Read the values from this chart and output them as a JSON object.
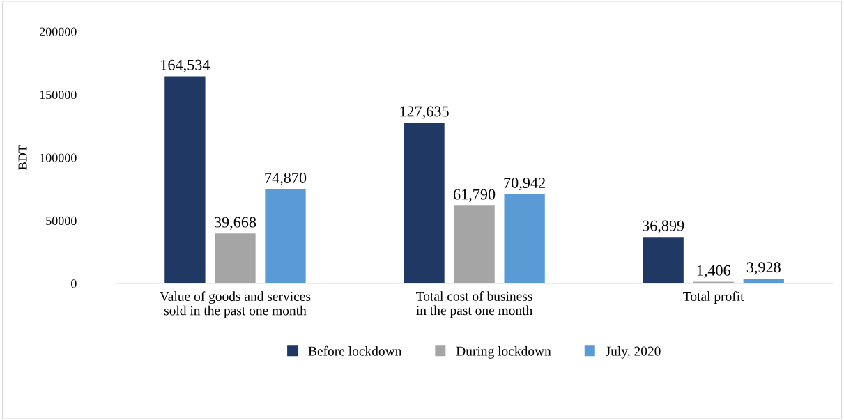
{
  "chart_data": {
    "type": "bar",
    "ylabel": "BDT",
    "categories": [
      "Value of goods and services sold in the past one month",
      "Total cost of business in the past one month",
      "Total profit"
    ],
    "series": [
      {
        "name": "Before lockdown",
        "color": "#203864",
        "values": [
          164534,
          127635,
          36899
        ],
        "value_labels": [
          "164,534",
          "127,635",
          "36,899"
        ]
      },
      {
        "name": "During lockdown",
        "color": "#a5a5a5",
        "values": [
          39668,
          61790,
          1406
        ],
        "value_labels": [
          "39,668",
          "61,790",
          "1,406"
        ]
      },
      {
        "name": "July, 2020",
        "color": "#5b9bd5",
        "values": [
          74870,
          70942,
          3928
        ],
        "value_labels": [
          "74,870",
          "70,942",
          "3,928"
        ]
      }
    ],
    "ylim": [
      0,
      200000
    ],
    "yticks": [
      0,
      50000,
      100000,
      150000,
      200000
    ],
    "grid": false,
    "legend": "bottom"
  }
}
